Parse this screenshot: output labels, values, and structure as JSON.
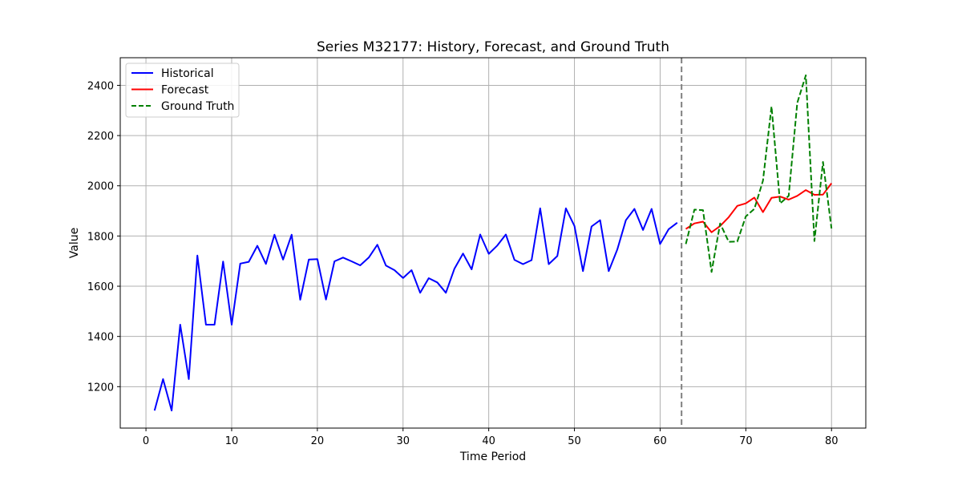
{
  "chart_data": {
    "type": "line",
    "title": "Series M32177: History, Forecast, and Ground Truth",
    "xlabel": "Time Period",
    "ylabel": "Value",
    "xlim": [
      -3,
      84
    ],
    "ylim": [
      1035,
      2510
    ],
    "xticks": [
      0,
      10,
      20,
      30,
      40,
      50,
      60,
      70,
      80
    ],
    "yticks": [
      1200,
      1400,
      1600,
      1800,
      2000,
      2200,
      2400
    ],
    "grid": true,
    "legend_position": "top-left",
    "forecast_start_marker_x": 62.5,
    "series": [
      {
        "name": "Historical",
        "color": "#0000ff",
        "style": "solid",
        "x": [
          1,
          2,
          3,
          4,
          5,
          6,
          7,
          8,
          9,
          10,
          11,
          12,
          13,
          14,
          15,
          16,
          17,
          18,
          19,
          20,
          21,
          22,
          23,
          24,
          25,
          26,
          27,
          28,
          29,
          30,
          31,
          32,
          33,
          34,
          35,
          36,
          37,
          38,
          39,
          40,
          41,
          42,
          43,
          44,
          45,
          46,
          47,
          48,
          49,
          50,
          51,
          52,
          53,
          54,
          55,
          56,
          57,
          58,
          59,
          60,
          61,
          62
        ],
        "y": [
          1105,
          1230,
          1105,
          1447,
          1230,
          1722,
          1447,
          1447,
          1698,
          1447,
          1690,
          1697,
          1761,
          1689,
          1805,
          1706,
          1805,
          1546,
          1706,
          1708,
          1547,
          1699,
          1714,
          1699,
          1683,
          1714,
          1765,
          1682,
          1664,
          1633,
          1664,
          1574,
          1632,
          1615,
          1574,
          1670,
          1730,
          1667,
          1806,
          1729,
          1762,
          1806,
          1705,
          1688,
          1704,
          1910,
          1688,
          1720,
          1910,
          1840,
          1660,
          1838,
          1863,
          1660,
          1746,
          1863,
          1908,
          1824,
          1908,
          1768,
          1827,
          1853
        ]
      },
      {
        "name": "Forecast",
        "color": "#ff0000",
        "style": "solid",
        "x": [
          63,
          64,
          65,
          66,
          67,
          68,
          69,
          70,
          71,
          72,
          73,
          74,
          75,
          76,
          77,
          78,
          79,
          80
        ],
        "y": [
          1828,
          1850,
          1857,
          1815,
          1840,
          1875,
          1920,
          1930,
          1953,
          1895,
          1952,
          1957,
          1945,
          1960,
          1983,
          1964,
          1965,
          2010
        ]
      },
      {
        "name": "Ground Truth",
        "color": "#008000",
        "style": "dashed",
        "x": [
          63,
          64,
          65,
          66,
          67,
          68,
          69,
          70,
          71,
          72,
          73,
          74,
          75,
          76,
          77,
          78,
          79,
          80
        ],
        "y": [
          1768,
          1905,
          1903,
          1657,
          1850,
          1777,
          1778,
          1878,
          1908,
          2020,
          2316,
          1930,
          1960,
          2330,
          2440,
          1780,
          2095,
          1830
        ]
      }
    ]
  }
}
